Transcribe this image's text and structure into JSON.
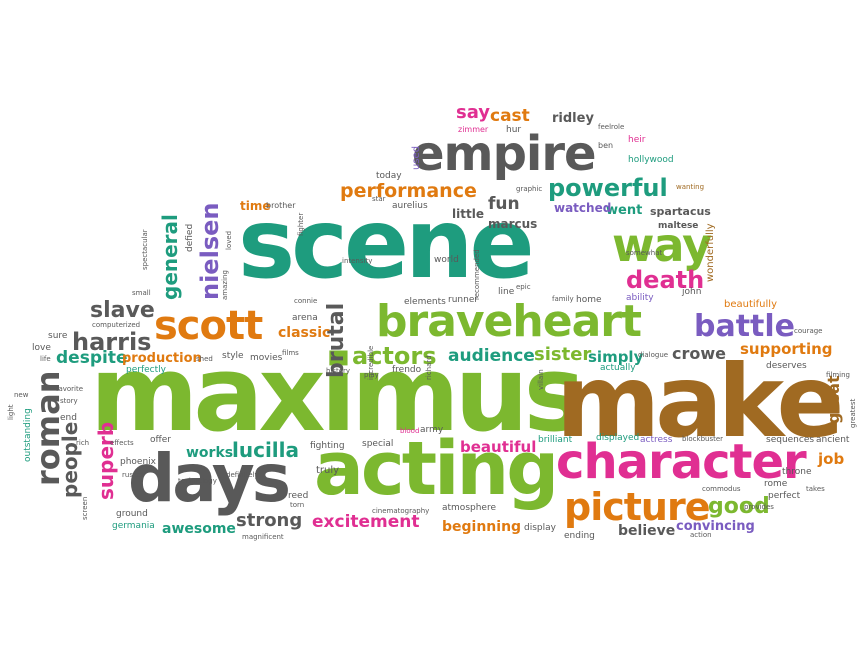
{
  "words": {
    "maximus": "maximus",
    "make": "make",
    "scene": "scene",
    "acting": "acting",
    "character": "character",
    "days": "days",
    "braveheart": "braveheart",
    "empire": "empire",
    "way": "way",
    "scott": "scott",
    "picture": "picture",
    "battle": "battle",
    "roman": "roman",
    "nielsen": "nielsen",
    "powerful": "powerful",
    "performance": "performance",
    "harris": "harris",
    "general": "general",
    "brutal": "brutal",
    "actors": "actors",
    "death": "death",
    "slave": "slave",
    "lucilla": "lucilla",
    "audience": "audience",
    "sister": "sister",
    "simply": "simply",
    "crowe": "crowe",
    "supporting": "supporting",
    "despite": "despite",
    "production": "production",
    "people": "people",
    "superb": "superb",
    "works": "works",
    "strong": "strong",
    "excitement": "excitement",
    "beginning": "beginning",
    "awesome": "awesome",
    "beautiful": "beautiful",
    "good": "good",
    "believe": "believe",
    "convincing": "convincing",
    "great": "great",
    "job": "job",
    "classic": "classic",
    "say": "say",
    "cast": "cast",
    "ridley": "ridley",
    "fun": "fun",
    "went": "went",
    "little": "little",
    "marcus": "marcus",
    "watched": "watched",
    "spartacus": "spartacus",
    "maltese": "maltese",
    "time": "time",
    "brother": "brother",
    "used": "used",
    "today": "today",
    "zimmer": "zimmer",
    "heir": "heir",
    "ben": "ben",
    "feelrole": "feelrole",
    "hollywood": "hollywood",
    "wanting": "wanting",
    "wonderfully": "wonderfully",
    "beautifully": "beautifully",
    "ability": "ability",
    "courage": "courage",
    "deserves": "deserves",
    "actually": "actually",
    "ancient": "ancient",
    "sequences": "sequences",
    "throne": "throne",
    "rome": "rome",
    "perfect": "perfect",
    "provides": "provides",
    "takes": "takes",
    "actress": "actress",
    "blockbuster": "blockbuster",
    "displayed": "displayed",
    "commodus": "commodus",
    "ending": "ending",
    "action": "action",
    "display": "display",
    "brilliant": "brilliant",
    "atmosphere": "atmosphere",
    "cinematography": "cinematography",
    "special": "special",
    "truly": "truly",
    "reed": "reed",
    "torn": "torn",
    "fighting": "fighting",
    "blood": "blood",
    "army": "army",
    "phoenix": "phoenix",
    "russel": "russel",
    "technology": "technology",
    "definitely": "definitely",
    "offer": "offer",
    "effects": "effects",
    "rich": "rich",
    "ground": "ground",
    "germania": "germania",
    "magnificent": "magnificent",
    "screen": "screen",
    "story": "story",
    "outstanding": "outstanding",
    "light": "light",
    "end": "end",
    "new": "new",
    "favorite": "favorite",
    "life": "life",
    "love": "love",
    "sure": "sure",
    "computerized": "computerized",
    "perfectly": "perfectly",
    "small": "small",
    "spectacular": "spectacular",
    "amazing": "amazing",
    "defied": "defied",
    "loved": "loved",
    "fighter": "fighter",
    "intensity": "intensity",
    "world": "world",
    "connie": "connie",
    "arena": "arena",
    "elements": "elements",
    "runner": "runner",
    "recommended": "recommended",
    "line": "line",
    "epic": "epic",
    "family": "family",
    "home": "home",
    "somewhat": "somewhat",
    "incredible": "incredible",
    "history": "history",
    "richard": "richard",
    "frendo": "frendo",
    "movies": "movies",
    "style": "style",
    "shed": "shed",
    "films": "films",
    "play": "play",
    "dialogue": "dialogue",
    "villain": "villain",
    "graphic": "graphic",
    "star": "star",
    "aurelius": "aurelius",
    "hur": "hur",
    "john": "john",
    "filming": "filming",
    "greatest": "greatest"
  },
  "palette": {
    "green": "#7cb82f",
    "teal": "#1e9c7e",
    "gray": "#595959",
    "orange": "#e07a10",
    "pink": "#e02f92",
    "brown": "#a06a22",
    "purple": "#7a5cc0"
  }
}
